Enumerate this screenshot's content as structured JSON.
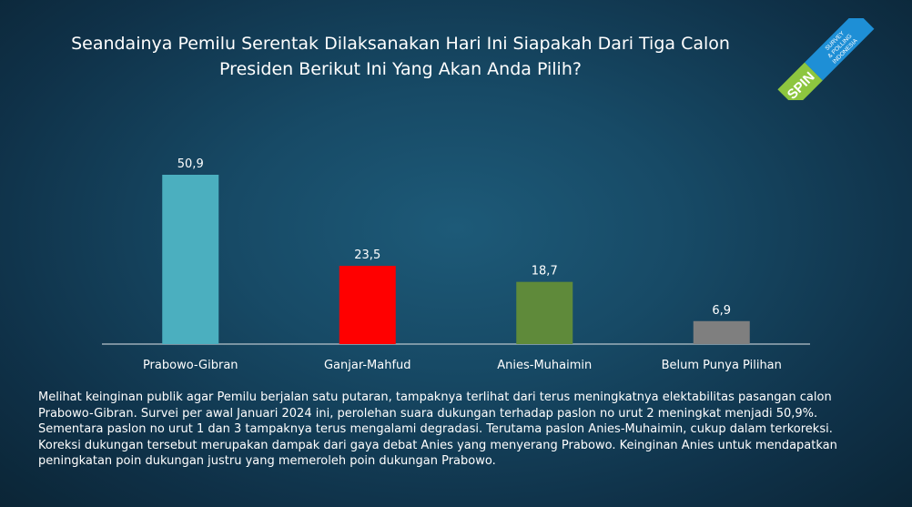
{
  "title_line1": "Seandainya Pemilu Serentak Dilaksanakan Hari Ini Siapakah Dari Tiga Calon",
  "title_line2": "Presiden Berikut Ini Yang Akan Anda Pilih?",
  "logo": {
    "main_text": "SPIN",
    "sub_text_1": "SURVEY",
    "sub_text_2": "& POLLING",
    "sub_text_3": "INDONESIA",
    "colors": {
      "green": "#8dc63f",
      "blue": "#1e8fd6"
    }
  },
  "chart_data": {
    "type": "bar",
    "title": "Seandainya Pemilu Serentak Dilaksanakan Hari Ini Siapakah Dari Tiga Calon Presiden Berikut Ini Yang Akan Anda Pilih?",
    "categories": [
      "Prabowo-Gibran",
      "Ganjar-Mahfud",
      "Anies-Muhaimin",
      "Belum Punya Pilihan"
    ],
    "values": [
      50.9,
      23.5,
      18.7,
      6.9
    ],
    "value_labels": [
      "50,9",
      "23,5",
      "18,7",
      "6,9"
    ],
    "colors": [
      "#4bafbf",
      "#ff0000",
      "#5f8a3a",
      "#7f7f7f"
    ],
    "ylim": [
      0,
      50.9
    ],
    "grid": false,
    "xlabel": "",
    "ylabel": ""
  },
  "description": "Melihat keinginan publik agar Pemilu berjalan satu putaran, tampaknya terlihat dari terus meningkatnya elektabilitas pasangan calon Prabowo-Gibran. Survei per awal Januari 2024 ini, perolehan suara dukungan  terhadap paslon no urut 2 meningkat menjadi 50,9%. Sementara paslon no urut 1 dan 3 tampaknya terus mengalami degradasi. Terutama paslon Anies-Muhaimin, cukup dalam terkoreksi. Koreksi dukungan tersebut merupakan dampak dari gaya debat Anies yang menyerang Prabowo. Keinginan Anies untuk mendapatkan peningkatan poin dukungan justru yang memeroleh poin dukungan Prabowo."
}
